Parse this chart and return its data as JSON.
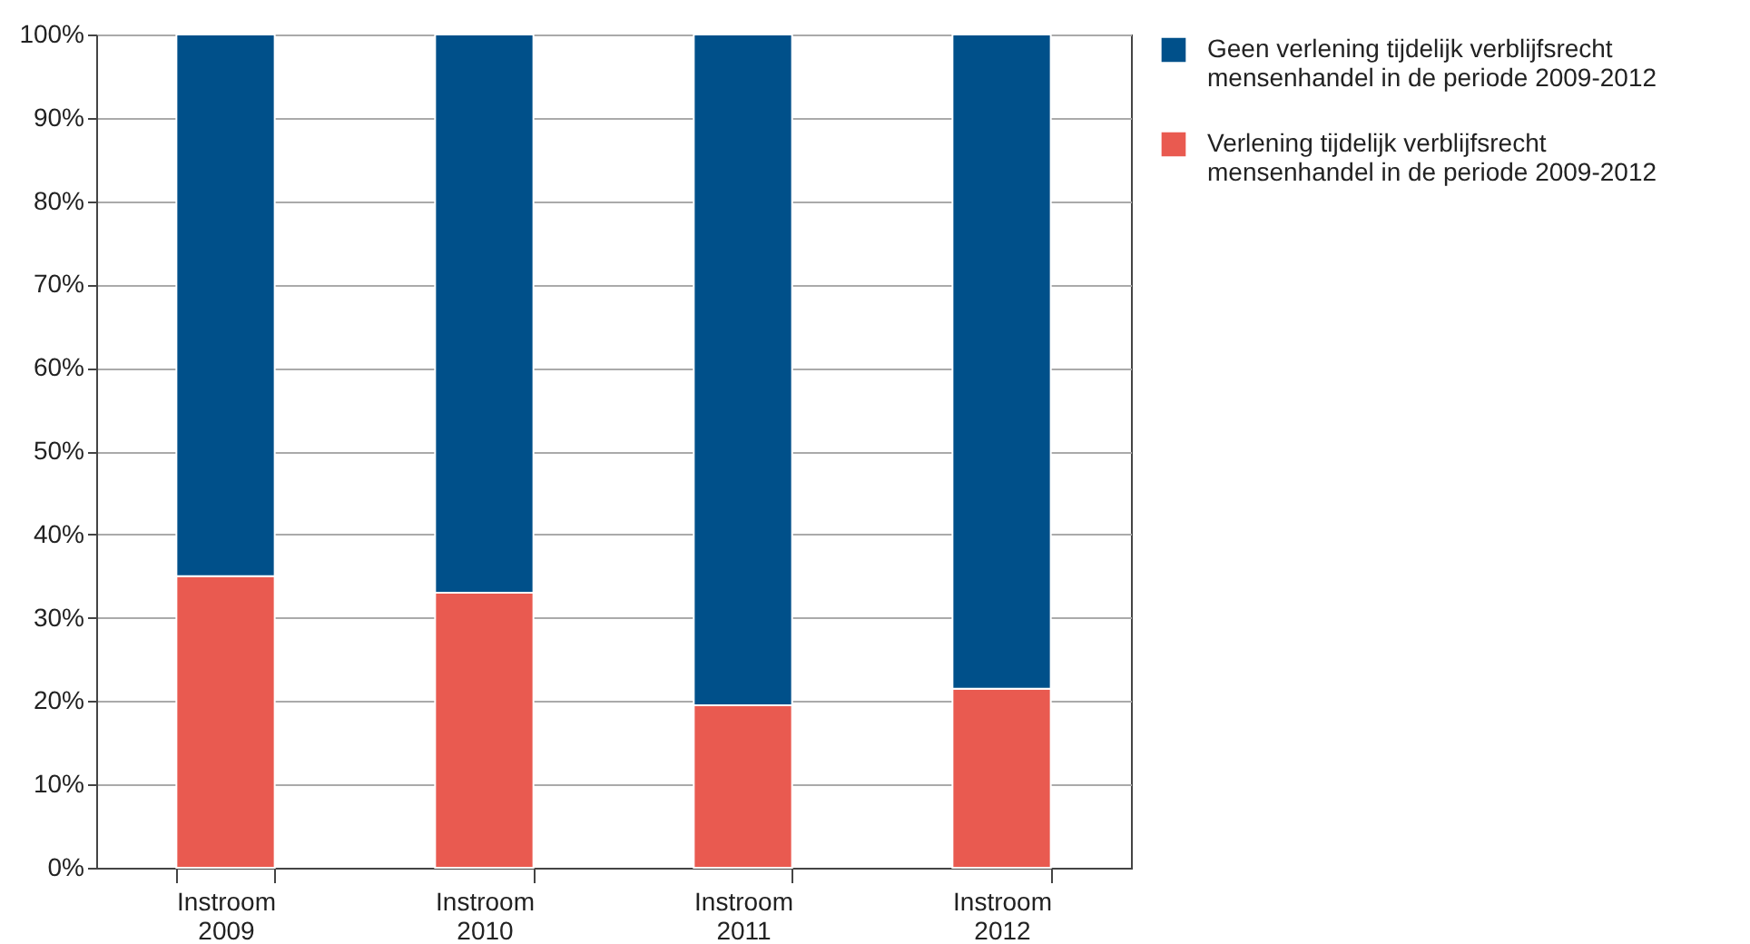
{
  "chart_data": {
    "type": "bar",
    "stacked": true,
    "categories": [
      "Instroom 2009",
      "Instroom 2010",
      "Instroom 2011",
      "Instroom 2012"
    ],
    "series": [
      {
        "name": "Verlening tijdelijk verblijfsrecht mensenhandel in de periode 2009-2012",
        "color": "#e95a50",
        "values": [
          35,
          33,
          19.5,
          21.5
        ]
      },
      {
        "name": "Geen verlening tijdelijk verblijfsrecht mensenhandel in de periode 2009-2012",
        "color": "#00508a",
        "values": [
          65,
          67,
          80.5,
          78.5
        ]
      }
    ],
    "ylim": [
      0,
      100
    ],
    "yticks": [
      {
        "value": 0,
        "label": "0%"
      },
      {
        "value": 10,
        "label": "10%"
      },
      {
        "value": 20,
        "label": "20%"
      },
      {
        "value": 30,
        "label": "30%"
      },
      {
        "value": 40,
        "label": "40%"
      },
      {
        "value": 50,
        "label": "50%"
      },
      {
        "value": 60,
        "label": "60%"
      },
      {
        "value": 70,
        "label": "70%"
      },
      {
        "value": 80,
        "label": "80%"
      },
      {
        "value": 90,
        "label": "90%"
      },
      {
        "value": 100,
        "label": "100%"
      }
    ],
    "grid": "y",
    "legend": "right"
  }
}
